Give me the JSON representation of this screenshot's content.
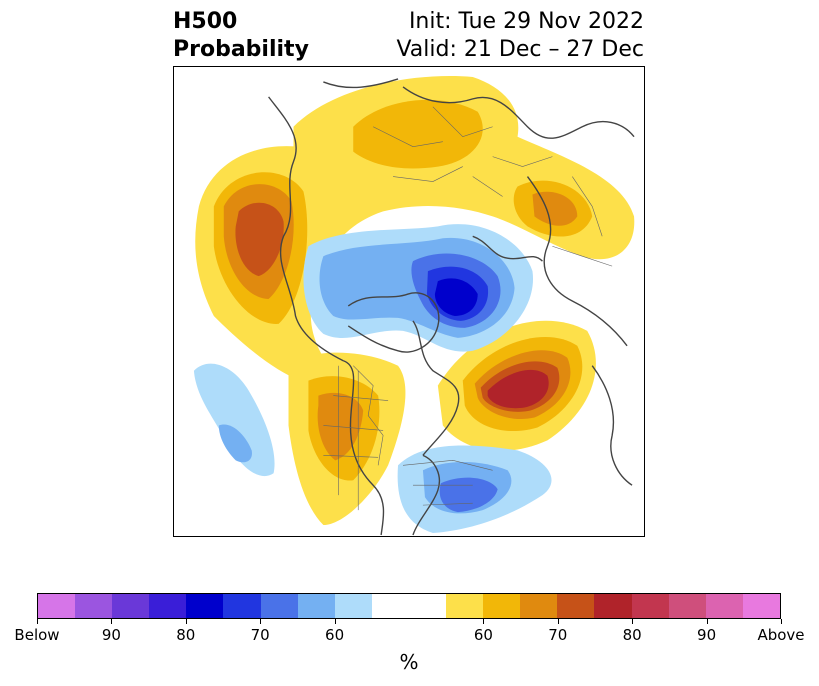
{
  "header": {
    "title_line1": "H500",
    "title_line2": "Probability",
    "init_text": "Init: Tue 29 Nov 2022",
    "valid_text": "Valid: 21 Dec – 27 Dec"
  },
  "colorbar": {
    "unit": "%",
    "colors": [
      "#d675e8",
      "#9b55e0",
      "#6a38d8",
      "#3a1ed8",
      "#0000cc",
      "#2136e0",
      "#4a72e8",
      "#74b0f2",
      "#aedcfa",
      "#ffffff",
      "#ffffff",
      "#fde04a",
      "#f2b708",
      "#e08a0f",
      "#c65218",
      "#b0232a",
      "#c2364f",
      "#cf4f7c",
      "#dc63b0",
      "#e879df"
    ],
    "labels": [
      "Below",
      "90",
      "80",
      "70",
      "60",
      "60",
      "70",
      "80",
      "90",
      "Above"
    ],
    "label_positions": [
      0,
      2,
      4,
      6,
      8,
      12,
      14,
      16,
      18,
      20
    ]
  },
  "map": {
    "projection": "north-polar-stereographic",
    "anomalies": [
      {
        "sign": "above",
        "region": "NE Pacific / Gulf of Alaska",
        "peak_percent": 75
      },
      {
        "sign": "above",
        "region": "North Atlantic",
        "peak_percent": 80
      },
      {
        "sign": "above",
        "region": "Siberia / Arctic Russia",
        "peak_percent": 65
      },
      {
        "sign": "above",
        "region": "Western Europe",
        "peak_percent": 70
      },
      {
        "sign": "above",
        "region": "Western United States",
        "peak_percent": 65
      },
      {
        "sign": "below",
        "region": "Arctic Ocean / Canadian Archipelago",
        "peak_percent": 85
      },
      {
        "sign": "below",
        "region": "Eastern United States / Western Atlantic",
        "peak_percent": 70
      },
      {
        "sign": "below",
        "region": "Subtropical Pacific",
        "peak_percent": 65
      }
    ]
  }
}
